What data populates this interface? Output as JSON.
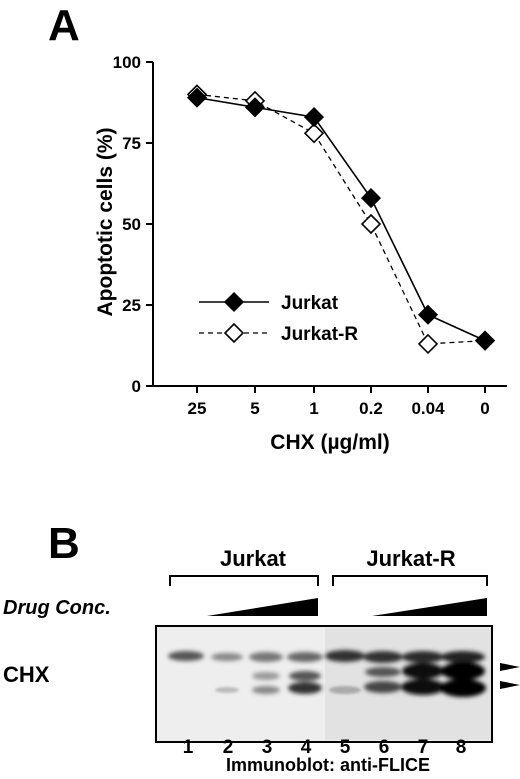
{
  "panel_a": {
    "letter": "A",
    "chart_data": {
      "type": "line",
      "xlabel": "CHX (µg/ml)",
      "ylabel": "Apoptotic cells (%)",
      "categories": [
        "25",
        "5",
        "1",
        "0.2",
        "0.04",
        "0"
      ],
      "ylim": [
        0,
        100
      ],
      "yticks": [
        "0",
        "25",
        "50",
        "75",
        "100"
      ],
      "grid": false,
      "legend_position": "lower-left",
      "series": [
        {
          "name": "Jurkat",
          "marker": "filled-diamond",
          "line": "solid",
          "values": [
            89,
            86,
            83,
            58,
            22,
            14
          ]
        },
        {
          "name": "Jurkat-R",
          "marker": "open-diamond",
          "line": "dashed",
          "values": [
            90,
            88,
            78,
            50,
            13,
            14
          ]
        }
      ]
    }
  },
  "panel_b": {
    "letter": "B",
    "groups": [
      "Jurkat",
      "Jurkat-R"
    ],
    "drug_label": "Drug Conc.",
    "row_label": "CHX",
    "lanes": [
      "1",
      "2",
      "3",
      "4",
      "5",
      "6",
      "7",
      "8"
    ],
    "caption": "Immunoblot: anti-FLICE"
  }
}
